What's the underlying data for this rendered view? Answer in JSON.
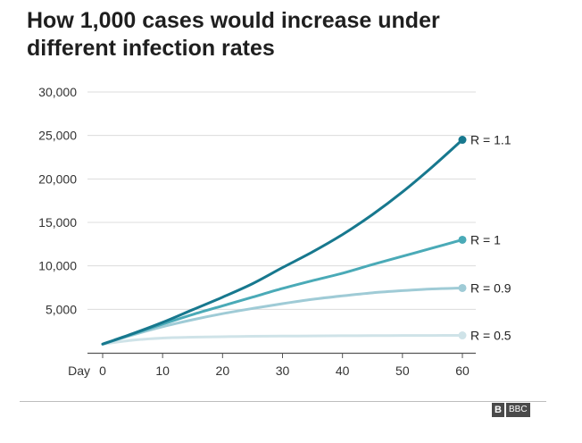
{
  "header": {
    "title_line1": "How 1,000 cases would increase under",
    "title_line2": "different infection rates"
  },
  "chart_data": {
    "type": "line",
    "title": "How 1,000 cases would increase under different infection rates",
    "xlabel": "Day",
    "ylabel": "",
    "x": [
      0,
      5,
      10,
      15,
      20,
      25,
      30,
      35,
      40,
      45,
      50,
      55,
      60
    ],
    "xlim": [
      0,
      60
    ],
    "ylim": [
      0,
      30000
    ],
    "x_ticks": [
      0,
      10,
      20,
      30,
      40,
      50,
      60
    ],
    "x_tick_labels": [
      "0",
      "10",
      "20",
      "30",
      "40",
      "50",
      "60"
    ],
    "y_ticks": [
      5000,
      10000,
      15000,
      20000,
      25000,
      30000
    ],
    "y_tick_labels": [
      "5,000",
      "10,000",
      "15,000",
      "20,000",
      "25,000",
      "30,000"
    ],
    "grid": true,
    "legend": "end-labels",
    "series": [
      {
        "name": "R = 0.5",
        "label": "R = 0.5",
        "color": "#cfe3e8",
        "values": [
          1000,
          1450,
          1700,
          1800,
          1850,
          1900,
          1920,
          1940,
          1960,
          1975,
          1985,
          1995,
          2000
        ]
      },
      {
        "name": "R = 0.9",
        "label": "R = 0.9",
        "color": "#9fcbd6",
        "values": [
          1000,
          2050,
          3000,
          3800,
          4500,
          5100,
          5650,
          6150,
          6550,
          6900,
          7150,
          7350,
          7450
        ]
      },
      {
        "name": "R = 1",
        "label": "R = 1",
        "color": "#4aaab7",
        "values": [
          1000,
          2150,
          3300,
          4400,
          5400,
          6400,
          7400,
          8300,
          9150,
          10150,
          11100,
          12050,
          13000
        ]
      },
      {
        "name": "R = 1.1",
        "label": "R = 1.1",
        "color": "#17788e",
        "values": [
          1000,
          2200,
          3500,
          4950,
          6400,
          7950,
          9800,
          11600,
          13600,
          15900,
          18500,
          21400,
          24500
        ]
      }
    ]
  },
  "footer": {
    "logo_letter": "B",
    "source_text": "BBC"
  }
}
